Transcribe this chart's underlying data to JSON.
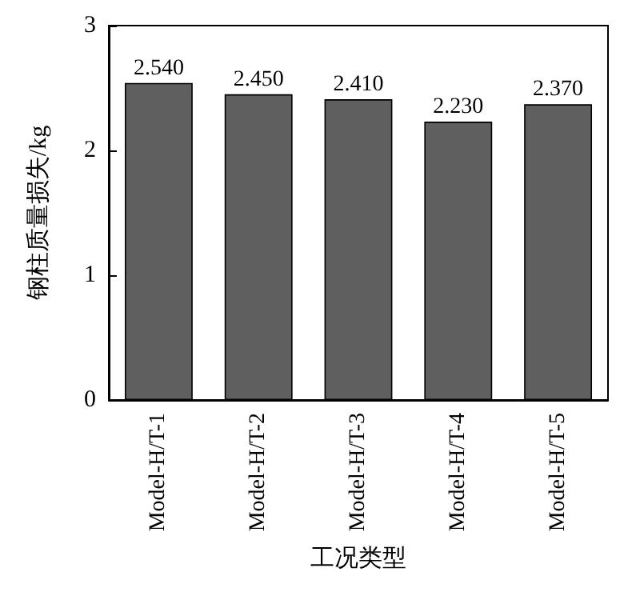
{
  "chart_data": {
    "type": "bar",
    "xlabel": "工况类型",
    "ylabel": "钢柱质量损失/kg",
    "categories": [
      "Model-H/T-1",
      "Model-H/T-2",
      "Model-H/T-3",
      "Model-H/T-4",
      "Model-H/T-5"
    ],
    "values": [
      2.54,
      2.45,
      2.41,
      2.23,
      2.37
    ],
    "value_labels": [
      "2.540",
      "2.450",
      "2.410",
      "2.230",
      "2.370"
    ],
    "color": "#5f5f5f",
    "ylim": [
      0,
      3
    ],
    "yticks": [
      0,
      1,
      2,
      3
    ],
    "grid": false
  }
}
